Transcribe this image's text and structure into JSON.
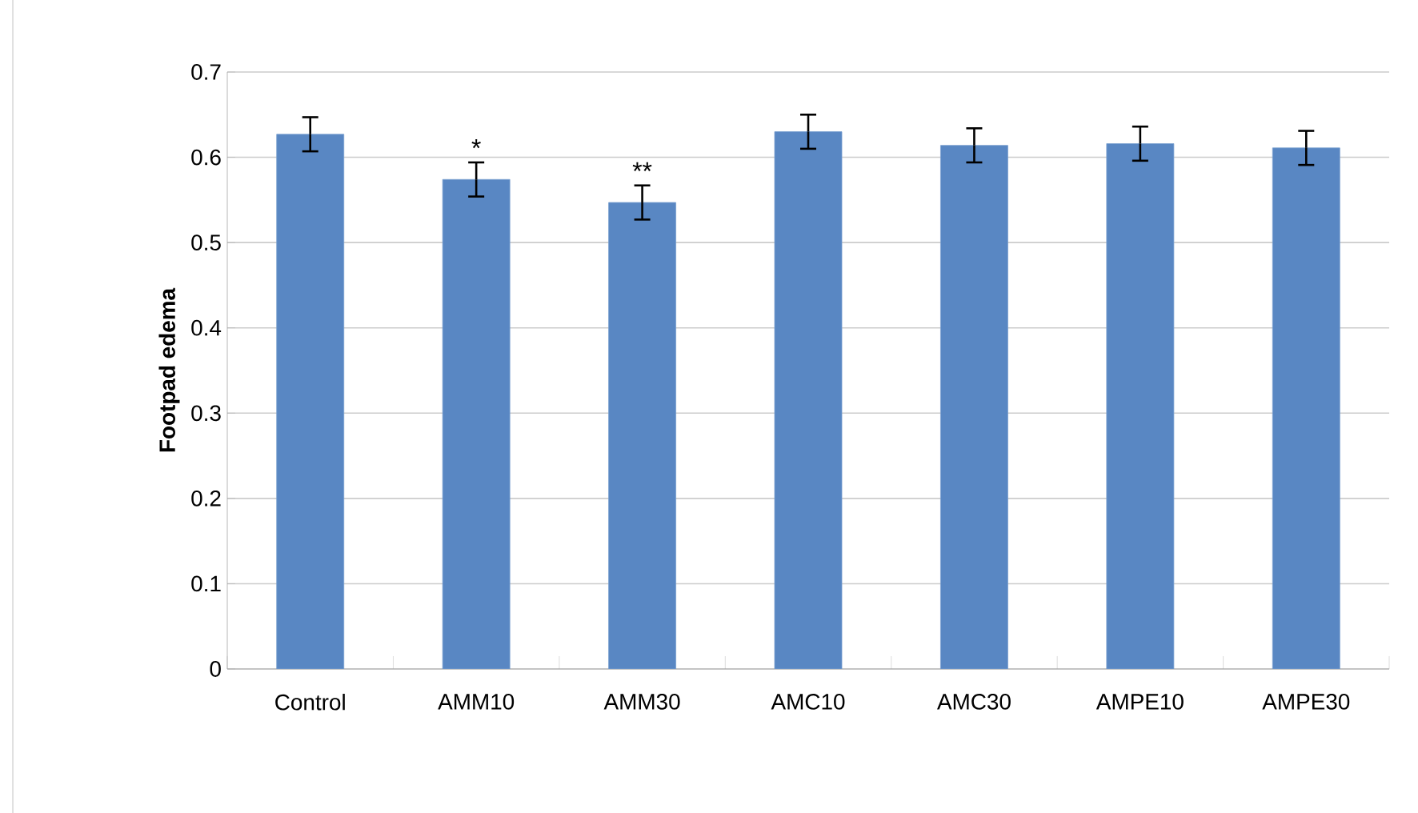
{
  "chart_data": {
    "type": "bar",
    "ylabel": "Footpad edema",
    "categories": [
      "Control",
      "AMM10",
      "AMM30",
      "AMC10",
      "AMC30",
      "AMPE10",
      "AMPE30"
    ],
    "values": [
      0.627,
      0.574,
      0.547,
      0.63,
      0.614,
      0.616,
      0.611
    ],
    "errors": [
      0.02,
      0.02,
      0.02,
      0.02,
      0.02,
      0.02,
      0.02
    ],
    "color": "#5987c3",
    "ylim": [
      0,
      0.7
    ],
    "yticks": [
      0,
      0.1,
      0.2,
      0.3,
      0.4,
      0.5,
      0.6,
      0.7
    ],
    "grid": "y",
    "annotations": [
      "*",
      "**"
    ]
  }
}
